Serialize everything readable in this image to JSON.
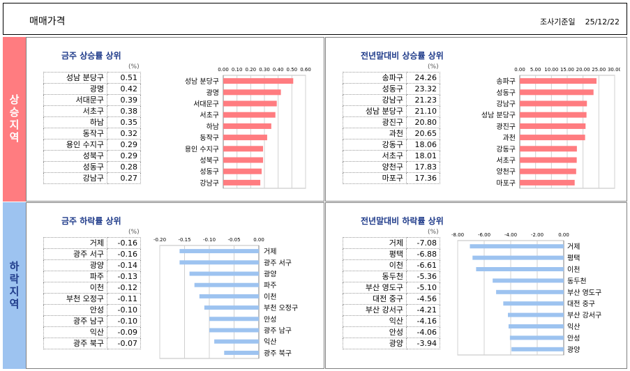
{
  "header": {
    "title": "매매가격",
    "survey_label": "조사기준일",
    "survey_date": "25/12/22"
  },
  "sections": {
    "rise": "상승지역",
    "fall": "하락지역"
  },
  "panels": {
    "week_rise": {
      "title": "금주 상승률 상위",
      "unit": "(%)",
      "rows": [
        {
          "name": "성남 분당구",
          "value": "0.51"
        },
        {
          "name": "광명",
          "value": "0.42"
        },
        {
          "name": "서대문구",
          "value": "0.39"
        },
        {
          "name": "서초구",
          "value": "0.38"
        },
        {
          "name": "하남",
          "value": "0.35"
        },
        {
          "name": "동작구",
          "value": "0.32"
        },
        {
          "name": "용인 수지구",
          "value": "0.29"
        },
        {
          "name": "성북구",
          "value": "0.29"
        },
        {
          "name": "성동구",
          "value": "0.28"
        },
        {
          "name": "강남구",
          "value": "0.27"
        }
      ]
    },
    "year_rise": {
      "title": "전년말대비 상승률 상위",
      "unit": "(%)",
      "rows": [
        {
          "name": "송파구",
          "value": "24.26"
        },
        {
          "name": "성동구",
          "value": "23.32"
        },
        {
          "name": "강남구",
          "value": "21.23"
        },
        {
          "name": "성남 분당구",
          "value": "21.10"
        },
        {
          "name": "광진구",
          "value": "20.80"
        },
        {
          "name": "과천",
          "value": "20.65"
        },
        {
          "name": "강동구",
          "value": "18.06"
        },
        {
          "name": "서초구",
          "value": "18.01"
        },
        {
          "name": "양천구",
          "value": "17.83"
        },
        {
          "name": "마포구",
          "value": "17.36"
        }
      ]
    },
    "week_fall": {
      "title": "금주 하락률 상위",
      "unit": "(%)",
      "rows": [
        {
          "name": "거제",
          "value": "-0.16"
        },
        {
          "name": "광주 서구",
          "value": "-0.16"
        },
        {
          "name": "광양",
          "value": "-0.14"
        },
        {
          "name": "파주",
          "value": "-0.13"
        },
        {
          "name": "이천",
          "value": "-0.12"
        },
        {
          "name": "부천 오정구",
          "value": "-0.11"
        },
        {
          "name": "안성",
          "value": "-0.10"
        },
        {
          "name": "광주 남구",
          "value": "-0.10"
        },
        {
          "name": "익산",
          "value": "-0.09"
        },
        {
          "name": "광주 북구",
          "value": "-0.07"
        }
      ]
    },
    "year_fall": {
      "title": "전년말대비 하락률 상위",
      "unit": "(%)",
      "rows": [
        {
          "name": "거제",
          "value": "-7.08"
        },
        {
          "name": "평택",
          "value": "-6.88"
        },
        {
          "name": "이천",
          "value": "-6.61"
        },
        {
          "name": "동두천",
          "value": "-5.36"
        },
        {
          "name": "부산 영도구",
          "value": "-5.10"
        },
        {
          "name": "대전 중구",
          "value": "-4.56"
        },
        {
          "name": "부산 강서구",
          "value": "-4.21"
        },
        {
          "name": "익산",
          "value": "-4.16"
        },
        {
          "name": "안성",
          "value": "-4.06"
        },
        {
          "name": "광양",
          "value": "-3.94"
        }
      ]
    }
  },
  "colors": {
    "rise_bar": "#FF7C80",
    "fall_bar": "#9DC3F0",
    "title": "#1F3B8A",
    "grid": "#D0D0D0",
    "rise_side": "#FF7C80",
    "fall_side": "#9DC3F0"
  },
  "chart_data": [
    {
      "type": "bar",
      "orientation": "horizontal",
      "title": "금주 상승률 상위",
      "unit": "%",
      "categories": [
        "성남 분당구",
        "광명",
        "서대문구",
        "서초구",
        "하남",
        "동작구",
        "용인 수지구",
        "성북구",
        "성동구",
        "강남구"
      ],
      "values": [
        0.51,
        0.42,
        0.39,
        0.38,
        0.35,
        0.32,
        0.29,
        0.29,
        0.28,
        0.27
      ],
      "xlim": [
        0,
        0.6
      ],
      "ticks": [
        0,
        0.1,
        0.2,
        0.3,
        0.4,
        0.5,
        0.6
      ],
      "tick_labels": [
        "0.00",
        "0.10",
        "0.20",
        "0.30",
        "0.40",
        "0.50",
        "0.60"
      ],
      "label_side": "left",
      "axis_position": "top"
    },
    {
      "type": "bar",
      "orientation": "horizontal",
      "title": "전년말대비 상승률 상위",
      "unit": "%",
      "categories": [
        "송파구",
        "성동구",
        "강남구",
        "성남 분당구",
        "광진구",
        "과천",
        "강동구",
        "서초구",
        "양천구",
        "마포구"
      ],
      "values": [
        24.26,
        23.32,
        21.23,
        21.1,
        20.8,
        20.65,
        18.06,
        18.01,
        17.83,
        17.36
      ],
      "xlim": [
        0,
        30
      ],
      "ticks": [
        0,
        5,
        10,
        15,
        20,
        25,
        30
      ],
      "tick_labels": [
        "0.00",
        "5.00",
        "10.00",
        "15.00",
        "20.00",
        "25.00",
        "30.00"
      ],
      "label_side": "left",
      "axis_position": "top"
    },
    {
      "type": "bar",
      "orientation": "horizontal",
      "title": "금주 하락률 상위",
      "unit": "%",
      "categories": [
        "거제",
        "광주 서구",
        "광양",
        "파주",
        "이천",
        "부천 오정구",
        "안성",
        "광주 남구",
        "익산",
        "광주 북구"
      ],
      "values": [
        -0.16,
        -0.16,
        -0.14,
        -0.13,
        -0.12,
        -0.11,
        -0.1,
        -0.1,
        -0.09,
        -0.07
      ],
      "xlim": [
        -0.2,
        0
      ],
      "ticks": [
        -0.2,
        -0.15,
        -0.1,
        -0.05,
        0
      ],
      "tick_labels": [
        "-0.20",
        "-0.15",
        "-0.10",
        "-0.05",
        "0.00"
      ],
      "label_side": "right",
      "axis_position": "top"
    },
    {
      "type": "bar",
      "orientation": "horizontal",
      "title": "전년말대비 하락률 상위",
      "unit": "%",
      "categories": [
        "거제",
        "평택",
        "이천",
        "동두천",
        "부산 영도구",
        "대전 중구",
        "부산 강서구",
        "익산",
        "안성",
        "광양"
      ],
      "values": [
        -7.08,
        -6.88,
        -6.61,
        -5.36,
        -5.1,
        -4.56,
        -4.21,
        -4.16,
        -4.06,
        -3.94
      ],
      "xlim": [
        -8,
        0
      ],
      "ticks": [
        -8,
        -6,
        -4,
        -2,
        0
      ],
      "tick_labels": [
        "-8.00",
        "-6.00",
        "-4.00",
        "-2.00",
        "0.00"
      ],
      "label_side": "right",
      "axis_position": "top"
    }
  ]
}
